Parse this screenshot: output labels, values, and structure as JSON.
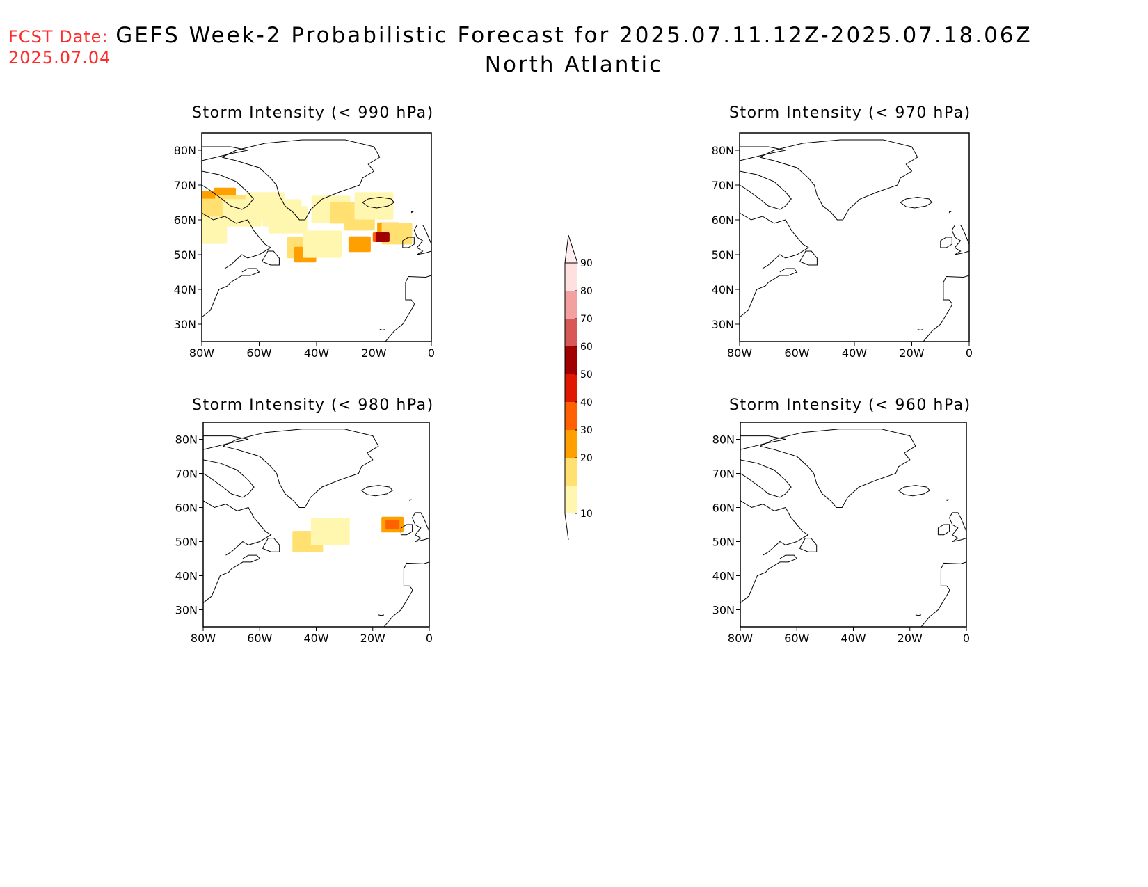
{
  "header": {
    "fcst_date_label": "FCST Date:",
    "fcst_date_value": "2025.07.04",
    "title_line1": "GEFS Week-2 Probabilistic Forecast for 2025.07.11.12Z-2025.07.18.06Z",
    "title_line2": "North Atlantic"
  },
  "panels": [
    {
      "id": "p990",
      "title": "Storm Intensity (< 990 hPa)"
    },
    {
      "id": "p970",
      "title": "Storm Intensity (< 970 hPa)"
    },
    {
      "id": "p980",
      "title": "Storm Intensity (< 980 hPa)"
    },
    {
      "id": "p960",
      "title": "Storm Intensity (< 960 hPa)"
    }
  ],
  "axes": {
    "lon_ticks": [
      "80W",
      "60W",
      "40W",
      "20W",
      "0"
    ],
    "lat_ticks": [
      "80N",
      "70N",
      "60N",
      "50N",
      "40N",
      "30N"
    ],
    "lon_values": [
      -80,
      -60,
      -40,
      -20,
      0
    ],
    "lat_values": [
      80,
      70,
      60,
      50,
      40,
      30
    ],
    "lon_range": [
      -80,
      0
    ],
    "lat_range": [
      25,
      85
    ]
  },
  "colorbar": {
    "levels": [
      "10",
      "20",
      "30",
      "40",
      "50",
      "60",
      "70",
      "80",
      "90"
    ],
    "colors": [
      "#fff6b0",
      "#ffe070",
      "#ffa000",
      "#ff6000",
      "#e01800",
      "#a00000",
      "#d85858",
      "#f2a0a0",
      "#ffe0e0",
      "#ffeef0"
    ]
  },
  "probability_data": {
    "p990": [
      {
        "lon": -78,
        "lat": 66,
        "cat": 3
      },
      {
        "lon": -72,
        "lat": 67,
        "cat": 3
      },
      {
        "lon": -70,
        "lat": 64,
        "cat": 2
      },
      {
        "lon": -75,
        "lat": 63,
        "cat": 2
      },
      {
        "lon": -66,
        "lat": 62,
        "cat": 1
      },
      {
        "lon": -58,
        "lat": 64,
        "cat": 1
      },
      {
        "lon": -52,
        "lat": 62,
        "cat": 1
      },
      {
        "lon": -50,
        "lat": 60,
        "cat": 1
      },
      {
        "lon": -78,
        "lat": 57,
        "cat": 1
      },
      {
        "lon": -45,
        "lat": 52,
        "cat": 2
      },
      {
        "lon": -44,
        "lat": 50,
        "cat": 3
      },
      {
        "lon": -38,
        "lat": 53,
        "cat": 1
      },
      {
        "lon": -35,
        "lat": 63,
        "cat": 1
      },
      {
        "lon": -30,
        "lat": 62,
        "cat": 2
      },
      {
        "lon": -25,
        "lat": 60,
        "cat": 2
      },
      {
        "lon": -25,
        "lat": 53,
        "cat": 3
      },
      {
        "lon": -20,
        "lat": 64,
        "cat": 1
      },
      {
        "lon": -18,
        "lat": 55,
        "cat": 4
      },
      {
        "lon": -15,
        "lat": 57,
        "cat": 3
      },
      {
        "lon": -12,
        "lat": 56,
        "cat": 2
      },
      {
        "lon": -17,
        "lat": 55,
        "cat": 6
      }
    ],
    "p980": [
      {
        "lon": -43,
        "lat": 50,
        "cat": 2
      },
      {
        "lon": -35,
        "lat": 53,
        "cat": 1
      },
      {
        "lon": -13,
        "lat": 55,
        "cat": 3
      },
      {
        "lon": -13,
        "lat": 55,
        "cat": 4
      }
    ],
    "p970": [],
    "p960": []
  }
}
